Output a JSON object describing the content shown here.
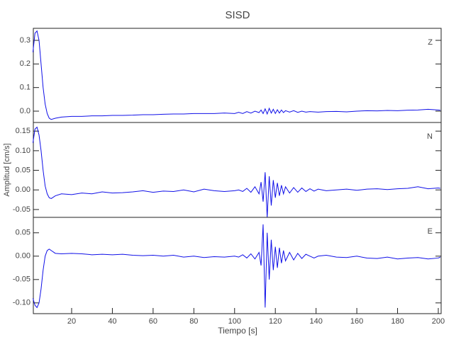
{
  "chart_data": [
    {
      "type": "line",
      "title": "SISD",
      "label": "Z",
      "color": "#1010e8",
      "x": [
        1,
        2,
        3,
        4,
        5,
        6,
        7,
        8,
        9,
        10,
        12,
        15,
        20,
        25,
        30,
        35,
        40,
        45,
        50,
        55,
        60,
        65,
        70,
        75,
        80,
        85,
        90,
        95,
        100,
        102,
        104,
        106,
        108,
        110,
        112,
        113,
        114,
        115,
        116,
        117,
        118,
        119,
        120,
        121,
        122,
        123,
        124,
        125,
        127,
        129,
        131,
        133,
        135,
        137,
        139,
        141,
        145,
        150,
        155,
        160,
        165,
        170,
        175,
        180,
        185,
        190,
        195,
        200,
        201
      ],
      "values": [
        0.25,
        0.33,
        0.34,
        0.3,
        0.2,
        0.1,
        0.03,
        -0.01,
        -0.03,
        -0.035,
        -0.03,
        -0.025,
        -0.022,
        -0.022,
        -0.02,
        -0.02,
        -0.018,
        -0.018,
        -0.017,
        -0.015,
        -0.015,
        -0.013,
        -0.012,
        -0.012,
        -0.01,
        -0.01,
        -0.01,
        -0.008,
        -0.01,
        -0.005,
        -0.01,
        -0.002,
        -0.008,
        0.0,
        -0.006,
        0.005,
        -0.01,
        0.01,
        -0.012,
        0.012,
        -0.008,
        0.008,
        -0.01,
        0.006,
        -0.008,
        0.005,
        -0.006,
        0.002,
        -0.004,
        0.002,
        -0.005,
        0.0,
        -0.004,
        -0.002,
        -0.003,
        -0.004,
        -0.002,
        -0.001,
        -0.003,
        0.0,
        0.002,
        0.001,
        0.003,
        0.002,
        0.004,
        0.005,
        0.008,
        0.005,
        0.004
      ],
      "xlim": [
        1.2,
        201.4
      ],
      "ylim": [
        -0.048,
        0.351
      ],
      "yticks": [
        {
          "value": 0,
          "label": "0.0"
        },
        0.1,
        0.2,
        0.3
      ]
    },
    {
      "type": "line",
      "ylabel": "Amplitud [cm/s]",
      "label": "N",
      "color": "#1010e8",
      "x": [
        1,
        2,
        3,
        4,
        5,
        6,
        7,
        8,
        9,
        10,
        12,
        15,
        20,
        25,
        30,
        35,
        40,
        45,
        50,
        55,
        60,
        65,
        70,
        75,
        80,
        85,
        90,
        95,
        100,
        102,
        104,
        106,
        108,
        110,
        112,
        113,
        114,
        115,
        116,
        117,
        118,
        119,
        120,
        121,
        122,
        123,
        124,
        125,
        127,
        129,
        131,
        133,
        135,
        137,
        139,
        141,
        145,
        150,
        155,
        160,
        165,
        170,
        175,
        180,
        185,
        190,
        195,
        200,
        201
      ],
      "values": [
        0.12,
        0.155,
        0.16,
        0.14,
        0.1,
        0.05,
        0.01,
        -0.01,
        -0.02,
        -0.022,
        -0.015,
        -0.01,
        -0.012,
        -0.008,
        -0.01,
        -0.005,
        -0.008,
        -0.007,
        -0.005,
        -0.002,
        -0.006,
        -0.003,
        -0.004,
        0.0,
        -0.005,
        0.002,
        -0.002,
        -0.004,
        -0.002,
        0.0,
        -0.004,
        0.004,
        -0.006,
        0.008,
        -0.01,
        0.02,
        -0.03,
        0.045,
        -0.07,
        0.035,
        -0.04,
        0.025,
        -0.02,
        0.018,
        -0.015,
        0.012,
        -0.01,
        0.008,
        -0.008,
        0.006,
        -0.006,
        0.005,
        -0.004,
        0.003,
        -0.003,
        0.002,
        -0.002,
        0.0,
        0.002,
        -0.001,
        0.002,
        0.003,
        0.001,
        0.003,
        0.004,
        0.008,
        0.003,
        0.005,
        0.004
      ],
      "xlim": [
        1.2,
        201.4
      ],
      "ylim": [
        -0.07,
        0.172
      ],
      "yticks": [
        {
          "value": -0.05,
          "label": "-0.05"
        },
        {
          "value": 0,
          "label": "0.00"
        },
        {
          "value": 0.05,
          "label": "0.05"
        },
        {
          "value": 0.1,
          "label": "0.10"
        },
        {
          "value": 0.15,
          "label": "0.15"
        }
      ]
    },
    {
      "type": "line",
      "xlabel": "Tiempo [s]",
      "label": "E",
      "color": "#1010e8",
      "x": [
        1,
        2,
        3,
        4,
        5,
        6,
        7,
        8,
        9,
        10,
        12,
        15,
        20,
        25,
        30,
        35,
        40,
        45,
        50,
        55,
        60,
        65,
        70,
        75,
        80,
        85,
        90,
        95,
        100,
        102,
        104,
        106,
        108,
        110,
        112,
        113,
        114,
        115,
        116,
        117,
        118,
        119,
        120,
        121,
        122,
        123,
        124,
        125,
        127,
        129,
        131,
        133,
        135,
        137,
        139,
        141,
        145,
        150,
        155,
        160,
        165,
        170,
        175,
        180,
        185,
        190,
        195,
        200,
        201
      ],
      "values": [
        -0.09,
        -0.105,
        -0.11,
        -0.1,
        -0.07,
        -0.03,
        0.0,
        0.012,
        0.015,
        0.012,
        0.006,
        0.005,
        0.006,
        0.005,
        0.003,
        0.004,
        0.003,
        0.004,
        0.002,
        0.001,
        0.002,
        0.0,
        0.002,
        -0.002,
        0.0,
        -0.003,
        -0.001,
        -0.002,
        0.0,
        -0.002,
        0.003,
        -0.004,
        0.005,
        -0.006,
        0.008,
        -0.02,
        0.068,
        -0.11,
        0.05,
        -0.05,
        0.035,
        -0.03,
        0.02,
        -0.025,
        0.018,
        -0.015,
        0.012,
        -0.01,
        0.008,
        -0.008,
        0.006,
        -0.005,
        0.004,
        0.0,
        -0.004,
        0.0,
        0.002,
        -0.002,
        -0.003,
        0.0,
        -0.004,
        -0.005,
        -0.002,
        -0.006,
        -0.004,
        -0.003,
        -0.006,
        -0.004,
        -0.002
      ],
      "xlim": [
        1.2,
        201.4
      ],
      "ylim": [
        -0.123,
        0.083
      ],
      "yticks": [
        {
          "value": -0.1,
          "label": "-0.10"
        },
        {
          "value": -0.05,
          "label": "-0.05"
        },
        {
          "value": 0,
          "label": "0.00"
        },
        {
          "value": 0.05,
          "label": "0.05"
        }
      ],
      "xticks": [
        20,
        40,
        60,
        80,
        100,
        120,
        140,
        160,
        180,
        200
      ]
    }
  ]
}
